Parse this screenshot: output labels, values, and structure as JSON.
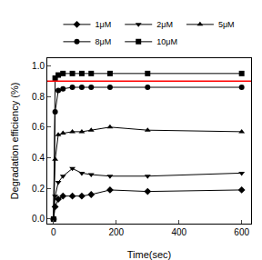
{
  "chart_data": {
    "type": "line",
    "x_label": "Time(sec)",
    "y_label": "Degradation efficiency (%)",
    "x": [
      0,
      5,
      15,
      30,
      60,
      90,
      120,
      180,
      300,
      600
    ],
    "series": [
      {
        "name": "1μM",
        "color": "#000000",
        "marker": "diamond",
        "values": [
          0,
          0.08,
          0.13,
          0.15,
          0.15,
          0.15,
          0.16,
          0.19,
          0.18,
          0.19
        ]
      },
      {
        "name": "2μM",
        "color": "#000000",
        "marker": "triangle-down",
        "values": [
          0,
          0.15,
          0.24,
          0.28,
          0.33,
          0.3,
          0.29,
          0.28,
          0.28,
          0.3
        ]
      },
      {
        "name": "5μM",
        "color": "#000000",
        "marker": "triangle-up",
        "values": [
          0,
          0.39,
          0.55,
          0.56,
          0.57,
          0.57,
          0.58,
          0.6,
          0.58,
          0.57
        ]
      },
      {
        "name": "8μM",
        "color": "#000000",
        "marker": "circle",
        "values": [
          0,
          0.7,
          0.84,
          0.85,
          0.86,
          0.86,
          0.86,
          0.86,
          0.86,
          0.86
        ]
      },
      {
        "name": "10μM",
        "color": "#000000",
        "marker": "square",
        "values": [
          0,
          0.92,
          0.94,
          0.95,
          0.95,
          0.95,
          0.95,
          0.95,
          0.95,
          0.95
        ]
      }
    ],
    "threshold": {
      "value": 0.9,
      "color": "#ff0000"
    },
    "xlim": [
      -20,
      630
    ],
    "xticks": [
      0,
      200,
      400,
      600
    ],
    "ylim": [
      -0.03,
      1.05
    ],
    "yticks": [
      {
        "value": 0,
        "label": "0.0"
      },
      0.2,
      0.4,
      0.6,
      0.8,
      {
        "value": 1,
        "label": "1.0"
      }
    ],
    "grid": false,
    "legend": "top"
  }
}
